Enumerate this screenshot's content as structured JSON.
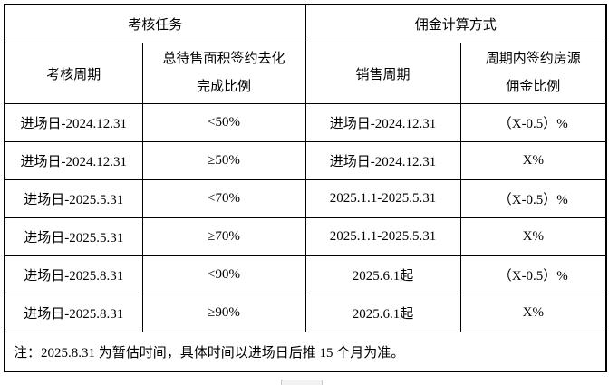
{
  "table": {
    "group_headers": [
      "考核任务",
      "佣金计算方式"
    ],
    "column_headers": [
      {
        "line1": "考核周期"
      },
      {
        "line1": "总待售面积签约去化",
        "line2": "完成比例"
      },
      {
        "line1": "销售周期"
      },
      {
        "line1": "周期内签约房源",
        "line2": "佣金比例"
      }
    ],
    "rows": [
      [
        "进场日-2024.12.31",
        "<50%",
        "进场日-2024.12.31",
        "（X-0.5）%"
      ],
      [
        "进场日-2024.12.31",
        "≥50%",
        "进场日-2024.12.31",
        "X%"
      ],
      [
        "进场日-2025.5.31",
        "<70%",
        "2025.1.1-2025.5.31",
        "（X-0.5）%"
      ],
      [
        "进场日-2025.5.31",
        "≥70%",
        "2025.1.1-2025.5.31",
        "X%"
      ],
      [
        "进场日-2025.8.31",
        "<90%",
        "2025.6.1起",
        "（X-0.5）%"
      ],
      [
        "进场日-2025.8.31",
        "≥90%",
        "2025.6.1起",
        "X%"
      ]
    ],
    "note": "注：2025.8.31 为暂估时间，具体时间以进场日后推 15 个月为准。"
  },
  "colors": {
    "border": "#000000",
    "background": "#ffffff",
    "text": "#000000",
    "scrollbar_thumb": "#f2f2f2"
  }
}
